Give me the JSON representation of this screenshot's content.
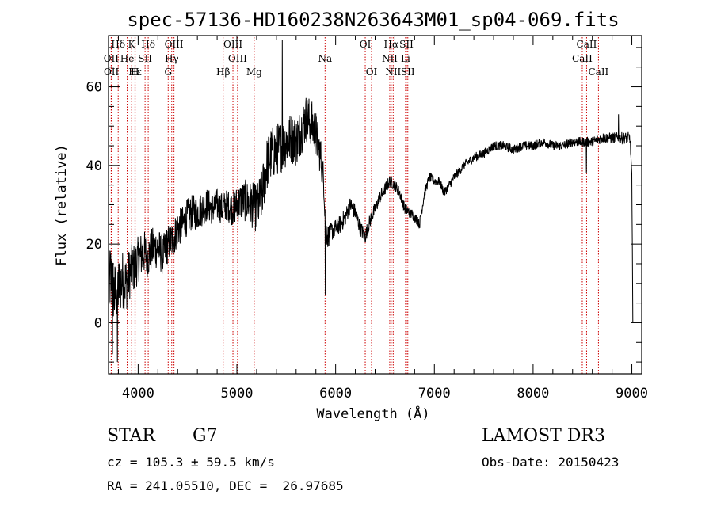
{
  "chart_data": {
    "type": "line",
    "title": "spec-57136-HD160238N263643M01_sp04-069.fits",
    "xlabel": "Wavelength (Å)",
    "ylabel": "Flux (relative)",
    "xlim": [
      3700,
      9100
    ],
    "ylim": [
      -13,
      73
    ],
    "xticks": [
      4000,
      5000,
      6000,
      7000,
      8000,
      9000
    ],
    "yticks": [
      0,
      20,
      40,
      60
    ],
    "grid": false,
    "series": [
      {
        "name": "Flux",
        "anchors": [
          [
            3700,
            8
          ],
          [
            3720,
            12
          ],
          [
            3760,
            7
          ],
          [
            3800,
            9
          ],
          [
            3840,
            11
          ],
          [
            3880,
            10
          ],
          [
            3920,
            13
          ],
          [
            3960,
            14
          ],
          [
            4000,
            16
          ],
          [
            4050,
            18
          ],
          [
            4100,
            17
          ],
          [
            4150,
            19
          ],
          [
            4200,
            19
          ],
          [
            4250,
            17
          ],
          [
            4300,
            20
          ],
          [
            4350,
            21
          ],
          [
            4400,
            24
          ],
          [
            4450,
            25
          ],
          [
            4500,
            27
          ],
          [
            4550,
            28
          ],
          [
            4600,
            28
          ],
          [
            4650,
            29
          ],
          [
            4700,
            30
          ],
          [
            4750,
            29
          ],
          [
            4800,
            30
          ],
          [
            4850,
            29
          ],
          [
            4900,
            30
          ],
          [
            4950,
            29
          ],
          [
            5000,
            30
          ],
          [
            5050,
            31
          ],
          [
            5100,
            31
          ],
          [
            5150,
            30
          ],
          [
            5200,
            29
          ],
          [
            5250,
            32
          ],
          [
            5300,
            40
          ],
          [
            5350,
            43
          ],
          [
            5400,
            44
          ],
          [
            5450,
            45
          ],
          [
            5500,
            46
          ],
          [
            5550,
            47
          ],
          [
            5600,
            46
          ],
          [
            5650,
            49
          ],
          [
            5700,
            52
          ],
          [
            5750,
            51
          ],
          [
            5800,
            48
          ],
          [
            5850,
            42
          ],
          [
            5880,
            36
          ],
          [
            5900,
            24
          ],
          [
            5920,
            22
          ],
          [
            5950,
            23
          ],
          [
            6000,
            24
          ],
          [
            6050,
            25
          ],
          [
            6100,
            27
          ],
          [
            6150,
            30
          ],
          [
            6200,
            28
          ],
          [
            6250,
            24
          ],
          [
            6300,
            22
          ],
          [
            6350,
            26
          ],
          [
            6400,
            29
          ],
          [
            6450,
            32
          ],
          [
            6500,
            34
          ],
          [
            6550,
            36
          ],
          [
            6600,
            35
          ],
          [
            6650,
            33
          ],
          [
            6700,
            29
          ],
          [
            6750,
            28
          ],
          [
            6800,
            27
          ],
          [
            6850,
            25
          ],
          [
            6900,
            33
          ],
          [
            6950,
            37
          ],
          [
            7000,
            36
          ],
          [
            7050,
            36
          ],
          [
            7100,
            33
          ],
          [
            7200,
            37
          ],
          [
            7300,
            40
          ],
          [
            7400,
            42
          ],
          [
            7500,
            43
          ],
          [
            7600,
            45
          ],
          [
            7700,
            45
          ],
          [
            7800,
            44
          ],
          [
            7900,
            45
          ],
          [
            8000,
            45
          ],
          [
            8100,
            46
          ],
          [
            8200,
            45
          ],
          [
            8300,
            45
          ],
          [
            8400,
            46
          ],
          [
            8500,
            46
          ],
          [
            8600,
            46
          ],
          [
            8700,
            47
          ],
          [
            8800,
            47
          ],
          [
            8900,
            47
          ],
          [
            8980,
            47
          ],
          [
            9000,
            38
          ],
          [
            9010,
            0
          ]
        ],
        "noise_amplitude": [
          [
            3700,
            9
          ],
          [
            4000,
            6
          ],
          [
            4300,
            5
          ],
          [
            4900,
            4
          ],
          [
            5300,
            7
          ],
          [
            5800,
            6
          ],
          [
            5950,
            2.5
          ],
          [
            6600,
            1.5
          ],
          [
            7000,
            1.2
          ],
          [
            7600,
            1.2
          ],
          [
            8400,
            1.2
          ],
          [
            9000,
            1.5
          ]
        ],
        "features": [
          {
            "x": 5460,
            "y": 72
          },
          {
            "x": 5895,
            "y": 7
          },
          {
            "x": 3740,
            "y": -8
          },
          {
            "x": 3790,
            "y": -10
          },
          {
            "x": 8540,
            "y": 38
          },
          {
            "x": 8865,
            "y": 53
          }
        ]
      }
    ],
    "spectral_lines": [
      {
        "label": "Hδ",
        "x": 3798,
        "row": 0
      },
      {
        "label": "K",
        "x": 3934,
        "row": 0
      },
      {
        "label": "Hδ",
        "x": 4102,
        "row": 0
      },
      {
        "label": "OIII",
        "x": 4363,
        "row": 0
      },
      {
        "label": "OIII",
        "x": 4960,
        "row": 0
      },
      {
        "label": "OI",
        "x": 6300,
        "row": 0
      },
      {
        "label": "Hα",
        "x": 6563,
        "row": 0
      },
      {
        "label": "SII",
        "x": 6717,
        "row": 0
      },
      {
        "label": "CaII",
        "x": 8542,
        "row": 0
      },
      {
        "label": "OII",
        "x": 3727,
        "row": 1
      },
      {
        "label": "He",
        "x": 3889,
        "row": 1
      },
      {
        "label": "SII",
        "x": 4070,
        "row": 1
      },
      {
        "label": "Hγ",
        "x": 4340,
        "row": 1
      },
      {
        "label": "OIII",
        "x": 5007,
        "row": 1
      },
      {
        "label": "Na",
        "x": 5893,
        "row": 1
      },
      {
        "label": "NII",
        "x": 6548,
        "row": 1
      },
      {
        "label": "Li",
        "x": 6708,
        "row": 1
      },
      {
        "label": "CaII",
        "x": 8498,
        "row": 1
      },
      {
        "label": "OII",
        "x": 3729,
        "row": 2
      },
      {
        "label": "Hε",
        "x": 3970,
        "row": 2
      },
      {
        "label": "H",
        "x": 3968,
        "row": 2
      },
      {
        "label": "G",
        "x": 4304,
        "row": 2
      },
      {
        "label": "Hβ",
        "x": 4861,
        "row": 2
      },
      {
        "label": "Mg",
        "x": 5175,
        "row": 2
      },
      {
        "label": "OI",
        "x": 6364,
        "row": 2
      },
      {
        "label": "NII",
        "x": 6583,
        "row": 2
      },
      {
        "label": "SII",
        "x": 6731,
        "row": 2
      },
      {
        "label": "CaII",
        "x": 8662,
        "row": 2
      }
    ]
  },
  "info": {
    "object_class": "STAR",
    "subclass": "G7",
    "survey": "LAMOST DR3",
    "redshift": "cz = 105.3 ± 59.5 km/s",
    "obs_date": "Obs-Date: 20150423",
    "coords": "RA = 241.05510, DEC =  26.97685"
  },
  "colors": {
    "line": "#000000",
    "marker_lines": "#cc0000",
    "background": "#ffffff"
  }
}
